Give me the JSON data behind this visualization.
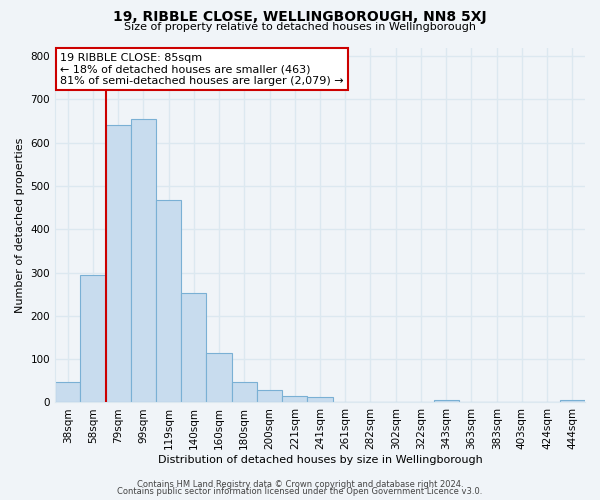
{
  "title": "19, RIBBLE CLOSE, WELLINGBOROUGH, NN8 5XJ",
  "subtitle": "Size of property relative to detached houses in Wellingborough",
  "xlabel": "Distribution of detached houses by size in Wellingborough",
  "ylabel": "Number of detached properties",
  "bin_labels": [
    "38sqm",
    "58sqm",
    "79sqm",
    "99sqm",
    "119sqm",
    "140sqm",
    "160sqm",
    "180sqm",
    "200sqm",
    "221sqm",
    "241sqm",
    "261sqm",
    "282sqm",
    "302sqm",
    "322sqm",
    "343sqm",
    "363sqm",
    "383sqm",
    "403sqm",
    "424sqm",
    "444sqm"
  ],
  "bar_heights": [
    47,
    295,
    640,
    655,
    468,
    253,
    114,
    48,
    28,
    15,
    13,
    0,
    0,
    0,
    0,
    5,
    0,
    0,
    0,
    0,
    5
  ],
  "bar_color": "#c8dcee",
  "bar_edge_color": "#7ab0d4",
  "vline_x_index": 2,
  "vline_color": "#cc0000",
  "annotation_line1": "19 RIBBLE CLOSE: 85sqm",
  "annotation_line2": "← 18% of detached houses are smaller (463)",
  "annotation_line3": "81% of semi-detached houses are larger (2,079) →",
  "annotation_bbox_facecolor": "white",
  "annotation_bbox_edgecolor": "#cc0000",
  "ylim": [
    0,
    820
  ],
  "yticks": [
    0,
    100,
    200,
    300,
    400,
    500,
    600,
    700,
    800
  ],
  "footer1": "Contains HM Land Registry data © Crown copyright and database right 2024.",
  "footer2": "Contains public sector information licensed under the Open Government Licence v3.0.",
  "bg_color": "#f0f4f8",
  "grid_color": "#dce8f0",
  "title_fontsize": 10,
  "subtitle_fontsize": 8,
  "axis_label_fontsize": 8,
  "tick_fontsize": 7.5,
  "annotation_fontsize": 8,
  "footer_fontsize": 6
}
